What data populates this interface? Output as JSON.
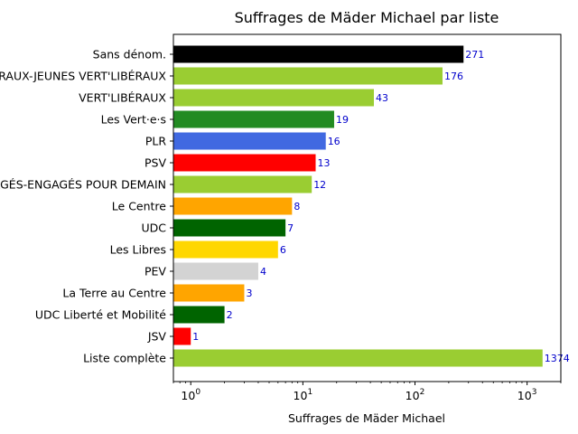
{
  "chart_data": {
    "type": "bar",
    "orientation": "horizontal",
    "title": "Suffrages de Mäder Michael par liste",
    "xlabel": "Suffrages de Mäder Michael",
    "ylabel": "",
    "xscale": "log",
    "xlim": [
      0.7,
      2000
    ],
    "xticks": [
      {
        "value": 1,
        "base": "10",
        "exp": "0"
      },
      {
        "value": 10,
        "base": "10",
        "exp": "1"
      },
      {
        "value": 100,
        "base": "10",
        "exp": "2"
      },
      {
        "value": 1000,
        "base": "10",
        "exp": "3"
      }
    ],
    "grid": false,
    "categories": [
      "Sans dénom.",
      "JEUNES VERT'LIBÉRAUX-JEUNES VERT'LIBÉRAUX",
      "VERT'LIBÉRAUX",
      "Les Vert·e·s",
      "PLR",
      "PSV",
      "JEUNES ENGAGÉS-ENGAGÉS POUR DEMAIN",
      "Le Centre",
      "UDC",
      "Les Libres",
      "PEV",
      "La Terre au Centre",
      "UDC Liberté et Mobilité",
      "JSV",
      "Liste complète"
    ],
    "values": [
      271,
      176,
      43,
      19,
      16,
      13,
      12,
      8,
      7,
      6,
      4,
      3,
      2,
      1,
      1374
    ],
    "value_labels": [
      "271",
      "176",
      "43",
      "19",
      "16",
      "13",
      "12",
      "8",
      "7",
      "6",
      "4",
      "3",
      "2",
      "1",
      "1374"
    ],
    "colors": [
      "#000000",
      "#9acd32",
      "#9acd32",
      "#228b22",
      "#4169e1",
      "#ff0000",
      "#9acd32",
      "#ffa500",
      "#006400",
      "#ffd700",
      "#d3d3d3",
      "#ffa500",
      "#006400",
      "#ff0000",
      "#9acd32"
    ],
    "value_label_color": "#0000cc"
  }
}
